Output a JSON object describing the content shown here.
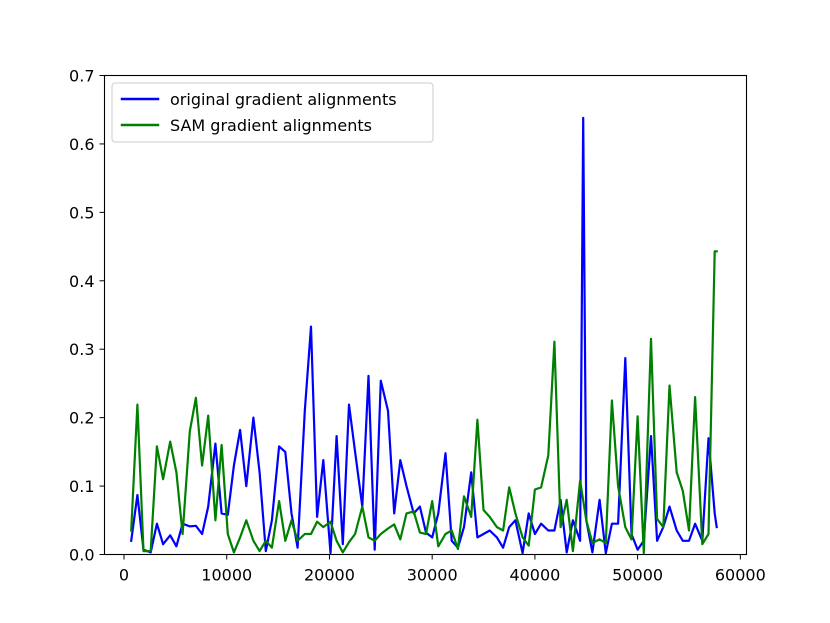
{
  "chart_data": {
    "type": "line",
    "xlim": [
      -1900,
      60600
    ],
    "ylim": [
      0,
      0.7
    ],
    "xticks": [
      0,
      10000,
      20000,
      30000,
      40000,
      50000,
      60000
    ],
    "xtick_labels": [
      "0",
      "10000",
      "20000",
      "30000",
      "40000",
      "50000",
      "60000"
    ],
    "yticks": [
      0.0,
      0.1,
      0.2,
      0.3,
      0.4,
      0.5,
      0.6,
      0.7
    ],
    "ytick_labels": [
      "0.0",
      "0.1",
      "0.2",
      "0.3",
      "0.4",
      "0.5",
      "0.6",
      "0.7"
    ],
    "grid": false,
    "legend": {
      "position": "top-left"
    },
    "series": [
      {
        "name": "original gradient alignments",
        "color": "#0000ff",
        "x": [
          700,
          1300,
          1900,
          2600,
          3200,
          3800,
          4500,
          5100,
          5700,
          6400,
          7000,
          7600,
          8200,
          8900,
          9500,
          10100,
          10700,
          11300,
          11900,
          12600,
          13200,
          13800,
          14400,
          15100,
          15700,
          16300,
          16900,
          17600,
          18200,
          18800,
          19400,
          20100,
          20700,
          21300,
          21900,
          22500,
          23200,
          23800,
          24400,
          25000,
          25700,
          26300,
          26900,
          27500,
          28200,
          28800,
          29400,
          30000,
          30600,
          31300,
          31900,
          32500,
          33100,
          33800,
          34400,
          35000,
          35600,
          36300,
          36900,
          37500,
          38100,
          38800,
          39400,
          40000,
          40600,
          41300,
          41900,
          42500,
          43100,
          43700,
          44400,
          44700,
          45000,
          45600,
          46300,
          46900,
          47500,
          48100,
          48800,
          49400,
          50000,
          50600,
          51300,
          51900,
          52500,
          53100,
          53800,
          54400,
          55000,
          55600,
          56300,
          56900,
          57500
        ],
        "y": [
          0.02,
          0.087,
          0.007,
          0.003,
          0.045,
          0.015,
          0.028,
          0.012,
          0.045,
          0.041,
          0.042,
          0.03,
          0.07,
          0.162,
          0.06,
          0.058,
          0.13,
          0.182,
          0.1,
          0.2,
          0.12,
          0.005,
          0.05,
          0.158,
          0.15,
          0.06,
          0.01,
          0.21,
          0.333,
          0.055,
          0.138,
          0.002,
          0.173,
          0.015,
          0.219,
          0.15,
          0.07,
          0.261,
          0.007,
          0.254,
          0.21,
          0.06,
          0.138,
          0.1,
          0.06,
          0.07,
          0.032,
          0.025,
          0.06,
          0.148,
          0.02,
          0.01,
          0.04,
          0.12,
          0.025,
          0.03,
          0.035,
          0.025,
          0.01,
          0.04,
          0.05,
          0.002,
          0.06,
          0.03,
          0.045,
          0.035,
          0.035,
          0.08,
          0.003,
          0.05,
          0.02,
          0.638,
          0.05,
          0.003,
          0.08,
          0.002,
          0.045,
          0.045,
          0.287,
          0.03,
          0.007,
          0.02,
          0.173,
          0.02,
          0.04,
          0.07,
          0.035,
          0.02,
          0.02,
          0.045,
          0.02,
          0.17,
          0.06
        ],
        "x_tail": 57700,
        "y_tail": 0.04
      },
      {
        "name": "SAM gradient alignments",
        "color": "#008000",
        "x": [
          700,
          1300,
          1900,
          2600,
          3200,
          3800,
          4500,
          5100,
          5700,
          6400,
          7000,
          7600,
          8200,
          8900,
          9500,
          10100,
          10700,
          11300,
          11900,
          12600,
          13200,
          13800,
          14400,
          15100,
          15700,
          16300,
          16900,
          17600,
          18200,
          18800,
          19400,
          20100,
          20700,
          21300,
          21900,
          22500,
          23200,
          23800,
          24400,
          25000,
          25700,
          26300,
          26900,
          27500,
          28200,
          28800,
          29400,
          30000,
          30600,
          31300,
          31900,
          32500,
          33100,
          33800,
          34400,
          35000,
          35600,
          36300,
          36900,
          37500,
          38100,
          38800,
          39400,
          40000,
          40600,
          41300,
          41900,
          42500,
          43100,
          43700,
          44400,
          45000,
          45600,
          46300,
          46900,
          47500,
          48100,
          48800,
          49400,
          50000,
          50600,
          51300,
          51900,
          52500,
          53100,
          53800,
          54400,
          55000,
          55600,
          56300,
          56900,
          57500,
          57700
        ],
        "y": [
          0.035,
          0.219,
          0.005,
          0.005,
          0.158,
          0.11,
          0.165,
          0.12,
          0.03,
          0.18,
          0.229,
          0.13,
          0.203,
          0.05,
          0.16,
          0.03,
          0.003,
          0.025,
          0.05,
          0.02,
          0.005,
          0.02,
          0.01,
          0.078,
          0.02,
          0.05,
          0.02,
          0.03,
          0.03,
          0.048,
          0.04,
          0.048,
          0.02,
          0.003,
          0.018,
          0.03,
          0.07,
          0.025,
          0.02,
          0.03,
          0.038,
          0.044,
          0.022,
          0.06,
          0.063,
          0.032,
          0.03,
          0.078,
          0.012,
          0.03,
          0.035,
          0.008,
          0.085,
          0.055,
          0.197,
          0.065,
          0.055,
          0.04,
          0.035,
          0.098,
          0.06,
          0.025,
          0.013,
          0.095,
          0.098,
          0.145,
          0.311,
          0.04,
          0.08,
          0.005,
          0.108,
          0.05,
          0.017,
          0.022,
          0.017,
          0.225,
          0.1,
          0.04,
          0.022,
          0.202,
          0.002,
          0.315,
          0.052,
          0.04,
          0.247,
          0.12,
          0.093,
          0.035,
          0.23,
          0.015,
          0.03,
          0.443,
          0.443
        ]
      }
    ]
  }
}
